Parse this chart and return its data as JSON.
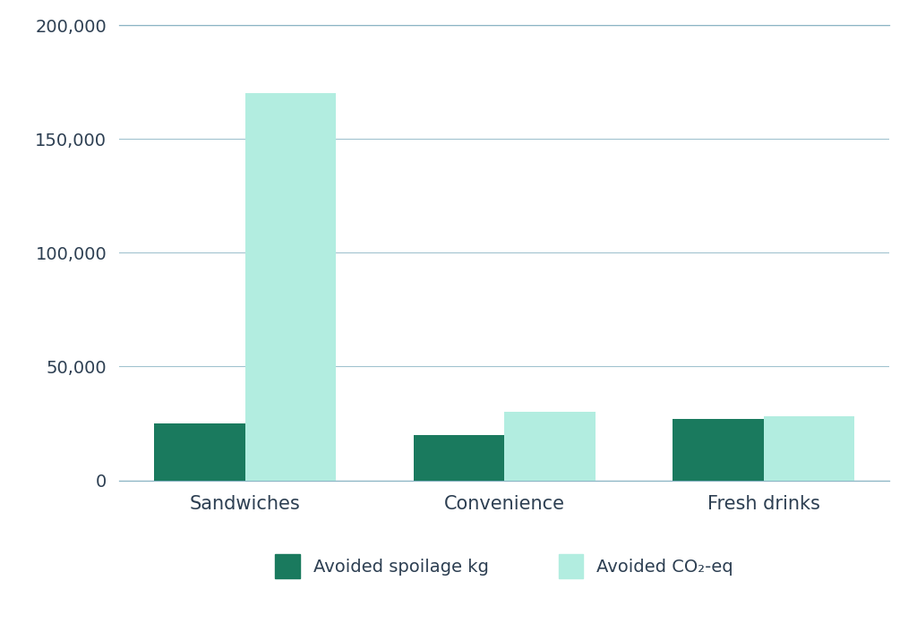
{
  "categories": [
    "Sandwiches",
    "Convenience",
    "Fresh drinks"
  ],
  "avoided_spoilage": [
    25000,
    20000,
    27000
  ],
  "avoided_co2": [
    170000,
    30000,
    28000
  ],
  "color_spoilage": "#1a7a5e",
  "color_co2": "#b2ede0",
  "background_color": "#ffffff",
  "text_color": "#2d3f52",
  "grid_color": "#8ab4c4",
  "ylim": [
    0,
    200000
  ],
  "yticks": [
    0,
    50000,
    100000,
    150000,
    200000
  ],
  "legend_label_spoilage": "Avoided spoilage kg",
  "legend_label_co2": "Avoided CO₂-eq",
  "bar_width": 0.35
}
